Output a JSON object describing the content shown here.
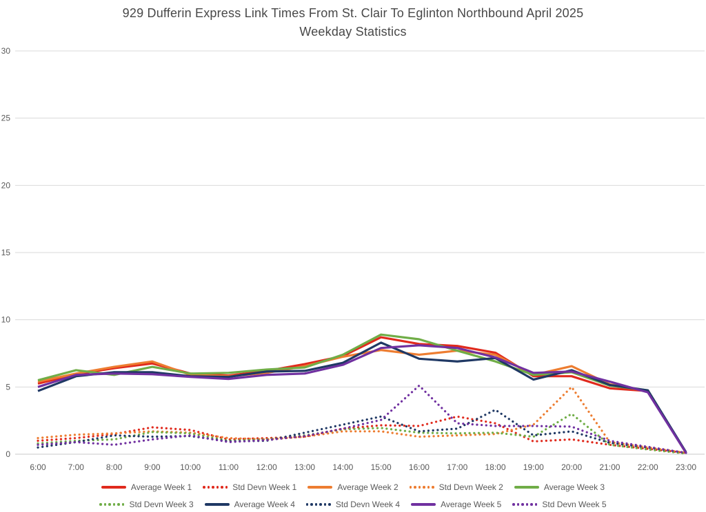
{
  "title": {
    "line1": "929 Dufferin Express Link Times From St. Clair To Eglinton Northbound April 2025",
    "line2": "Weekday Statistics"
  },
  "colors": {
    "red": "#E02A1D",
    "orange": "#ED7D31",
    "green": "#70AD47",
    "navy": "#1F3864",
    "purple": "#7030A0",
    "gridline": "#D9D9D9",
    "axis_line": "#C8C8C8",
    "tick_label": "#595959",
    "title_text": "#484848"
  },
  "chart_data": {
    "type": "line",
    "title": "929 Dufferin Express Link Times From St. Clair To Eglinton Northbound April 2025 Weekday Statistics",
    "xlabel": "",
    "ylabel": "",
    "x": [
      "6:00",
      "7:00",
      "8:00",
      "9:00",
      "10:00",
      "11:00",
      "12:00",
      "13:00",
      "14:00",
      "15:00",
      "16:00",
      "17:00",
      "18:00",
      "19:00",
      "20:00",
      "21:00",
      "22:00",
      "23:00"
    ],
    "ylim": [
      0,
      30
    ],
    "yticks": [
      0,
      5,
      10,
      15,
      20,
      25,
      30
    ],
    "grid": true,
    "legend_position": "bottom",
    "series": [
      {
        "name": "Average Week 1",
        "style": "solid",
        "color": "#E02A1D",
        "values": [
          5.25,
          5.95,
          6.4,
          6.75,
          6.0,
          5.85,
          6.2,
          6.7,
          7.3,
          8.7,
          8.2,
          8.05,
          7.55,
          5.8,
          5.8,
          4.9,
          4.7,
          0.1
        ]
      },
      {
        "name": "Std Devn Week 1",
        "style": "dotted",
        "color": "#E02A1D",
        "values": [
          1.0,
          1.2,
          1.5,
          2.0,
          1.8,
          1.1,
          1.2,
          1.3,
          1.9,
          2.15,
          2.1,
          2.8,
          2.3,
          0.95,
          1.1,
          0.7,
          0.4,
          0.1
        ]
      },
      {
        "name": "Average Week 2",
        "style": "solid",
        "color": "#ED7D31",
        "values": [
          5.4,
          6.0,
          6.5,
          6.9,
          5.9,
          5.8,
          6.05,
          6.55,
          7.25,
          7.75,
          7.4,
          7.7,
          7.4,
          5.9,
          6.55,
          5.2,
          4.7,
          0.1
        ]
      },
      {
        "name": "Std Devn Week 2",
        "style": "dotted",
        "color": "#ED7D31",
        "values": [
          1.2,
          1.45,
          1.55,
          1.7,
          1.6,
          1.2,
          1.1,
          1.3,
          1.7,
          1.7,
          1.3,
          1.4,
          1.5,
          2.2,
          5.0,
          0.9,
          0.5,
          0.1
        ]
      },
      {
        "name": "Average Week 3",
        "style": "solid",
        "color": "#70AD47",
        "values": [
          5.5,
          6.25,
          5.9,
          6.5,
          6.0,
          6.05,
          6.3,
          6.45,
          7.4,
          8.9,
          8.55,
          7.7,
          6.9,
          5.9,
          6.1,
          5.1,
          4.75,
          0.1
        ]
      },
      {
        "name": "Std Devn Week 3",
        "style": "dotted",
        "color": "#70AD47",
        "values": [
          0.8,
          1.0,
          1.1,
          1.65,
          1.55,
          1.0,
          1.1,
          1.4,
          1.85,
          1.95,
          1.6,
          1.55,
          1.6,
          1.3,
          3.0,
          0.7,
          0.35,
          0.05
        ]
      },
      {
        "name": "Average Week 4",
        "style": "solid",
        "color": "#1F3864",
        "values": [
          4.7,
          5.8,
          6.1,
          6.1,
          5.8,
          5.75,
          6.15,
          6.2,
          6.8,
          8.3,
          7.1,
          6.9,
          7.15,
          5.55,
          6.25,
          5.15,
          4.75,
          0.15
        ]
      },
      {
        "name": "Std Devn Week 4",
        "style": "dotted",
        "color": "#1F3864",
        "values": [
          0.5,
          0.9,
          1.4,
          1.3,
          1.35,
          0.95,
          1.0,
          1.6,
          2.2,
          2.8,
          1.7,
          1.9,
          3.3,
          1.4,
          1.7,
          0.85,
          0.5,
          0.1
        ]
      },
      {
        "name": "Average Week 5",
        "style": "solid",
        "color": "#7030A0",
        "values": [
          5.0,
          5.9,
          6.0,
          5.95,
          5.75,
          5.6,
          5.9,
          6.0,
          6.65,
          7.9,
          8.1,
          7.9,
          7.2,
          6.05,
          6.15,
          5.4,
          4.6,
          0.1
        ]
      },
      {
        "name": "Std Devn Week 5",
        "style": "dotted",
        "color": "#7030A0",
        "values": [
          0.7,
          0.9,
          0.7,
          1.1,
          1.4,
          0.9,
          1.05,
          1.35,
          1.9,
          2.55,
          5.1,
          2.3,
          2.1,
          2.1,
          2.05,
          1.0,
          0.55,
          0.1
        ]
      }
    ]
  }
}
